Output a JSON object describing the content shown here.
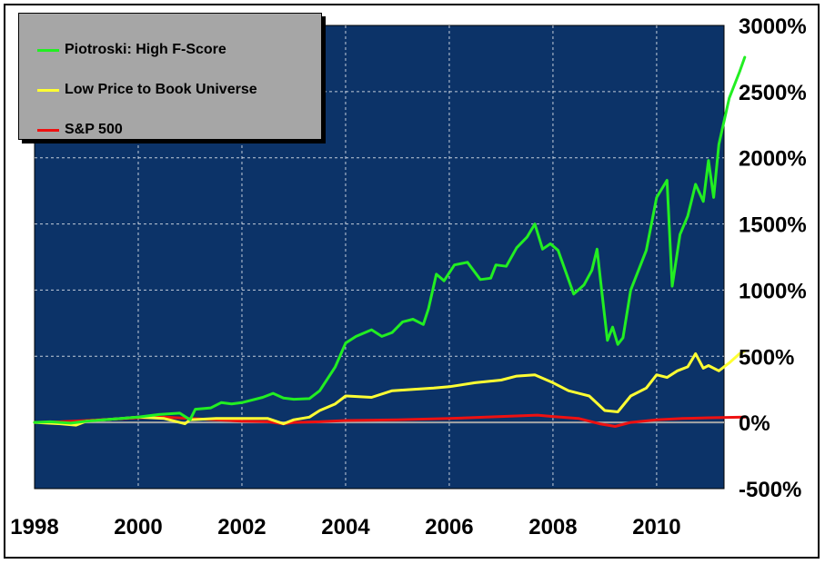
{
  "chart_data": {
    "type": "line",
    "title": "",
    "xlabel": "",
    "ylabel": "",
    "xlim": [
      1998,
      2011.3
    ],
    "ylim": [
      -500,
      3000
    ],
    "x_ticks": [
      "1998",
      "2000",
      "2002",
      "2004",
      "2006",
      "2008",
      "2010"
    ],
    "y_ticks": [
      "3000%",
      "2500%",
      "2000%",
      "1500%",
      "1000%",
      "500%",
      "0%",
      "-500%"
    ],
    "grid": true,
    "legend_position": "top-left",
    "plot_background": "#0c3368",
    "series": [
      {
        "name": "Piotroski: High F-Score",
        "color": "#22ee22",
        "points": [
          [
            1998.0,
            0
          ],
          [
            1998.3,
            5
          ],
          [
            1998.7,
            -5
          ],
          [
            1999.0,
            10
          ],
          [
            1999.5,
            25
          ],
          [
            2000.0,
            40
          ],
          [
            2000.4,
            60
          ],
          [
            2000.8,
            70
          ],
          [
            2001.0,
            20
          ],
          [
            2001.1,
            100
          ],
          [
            2001.4,
            110
          ],
          [
            2001.6,
            150
          ],
          [
            2001.8,
            140
          ],
          [
            2002.0,
            150
          ],
          [
            2002.4,
            190
          ],
          [
            2002.6,
            220
          ],
          [
            2002.8,
            185
          ],
          [
            2003.0,
            175
          ],
          [
            2003.3,
            180
          ],
          [
            2003.5,
            240
          ],
          [
            2003.8,
            420
          ],
          [
            2004.0,
            600
          ],
          [
            2004.2,
            650
          ],
          [
            2004.5,
            700
          ],
          [
            2004.7,
            650
          ],
          [
            2004.9,
            680
          ],
          [
            2005.1,
            760
          ],
          [
            2005.3,
            780
          ],
          [
            2005.5,
            740
          ],
          [
            2005.6,
            860
          ],
          [
            2005.75,
            1120
          ],
          [
            2005.9,
            1070
          ],
          [
            2006.1,
            1190
          ],
          [
            2006.35,
            1210
          ],
          [
            2006.6,
            1080
          ],
          [
            2006.8,
            1090
          ],
          [
            2006.9,
            1190
          ],
          [
            2007.1,
            1180
          ],
          [
            2007.3,
            1320
          ],
          [
            2007.5,
            1400
          ],
          [
            2007.65,
            1500
          ],
          [
            2007.8,
            1310
          ],
          [
            2007.95,
            1350
          ],
          [
            2008.1,
            1300
          ],
          [
            2008.4,
            970
          ],
          [
            2008.6,
            1040
          ],
          [
            2008.75,
            1150
          ],
          [
            2008.85,
            1310
          ],
          [
            2008.95,
            960
          ],
          [
            2009.05,
            620
          ],
          [
            2009.15,
            720
          ],
          [
            2009.25,
            590
          ],
          [
            2009.35,
            640
          ],
          [
            2009.5,
            1000
          ],
          [
            2009.8,
            1300
          ],
          [
            2010.0,
            1700
          ],
          [
            2010.2,
            1830
          ],
          [
            2010.3,
            1030
          ],
          [
            2010.45,
            1420
          ],
          [
            2010.6,
            1560
          ],
          [
            2010.75,
            1800
          ],
          [
            2010.9,
            1670
          ],
          [
            2011.0,
            1980
          ],
          [
            2011.1,
            1700
          ],
          [
            2011.2,
            2100
          ],
          [
            2011.4,
            2450
          ],
          [
            2011.6,
            2650
          ],
          [
            2011.7,
            2760
          ]
        ]
      },
      {
        "name": "Low Price to Book Universe",
        "color": "#ffff33",
        "points": [
          [
            1998.0,
            0
          ],
          [
            1998.5,
            -10
          ],
          [
            1998.8,
            -20
          ],
          [
            1999.0,
            10
          ],
          [
            1999.5,
            25
          ],
          [
            2000.0,
            40
          ],
          [
            2000.5,
            30
          ],
          [
            2000.9,
            -10
          ],
          [
            2001.0,
            20
          ],
          [
            2001.5,
            30
          ],
          [
            2002.0,
            30
          ],
          [
            2002.5,
            30
          ],
          [
            2002.8,
            -10
          ],
          [
            2003.0,
            20
          ],
          [
            2003.3,
            40
          ],
          [
            2003.5,
            90
          ],
          [
            2003.8,
            140
          ],
          [
            2004.0,
            200
          ],
          [
            2004.5,
            190
          ],
          [
            2004.9,
            240
          ],
          [
            2005.3,
            250
          ],
          [
            2005.7,
            260
          ],
          [
            2006.0,
            270
          ],
          [
            2006.5,
            300
          ],
          [
            2007.0,
            320
          ],
          [
            2007.3,
            350
          ],
          [
            2007.65,
            360
          ],
          [
            2008.0,
            300
          ],
          [
            2008.3,
            240
          ],
          [
            2008.7,
            200
          ],
          [
            2009.0,
            90
          ],
          [
            2009.25,
            80
          ],
          [
            2009.5,
            200
          ],
          [
            2009.8,
            260
          ],
          [
            2010.0,
            360
          ],
          [
            2010.2,
            340
          ],
          [
            2010.4,
            390
          ],
          [
            2010.6,
            420
          ],
          [
            2010.75,
            520
          ],
          [
            2010.9,
            410
          ],
          [
            2011.0,
            430
          ],
          [
            2011.2,
            390
          ],
          [
            2011.4,
            450
          ],
          [
            2011.6,
            520
          ],
          [
            2011.7,
            540
          ]
        ]
      },
      {
        "name": "S&P 500",
        "color": "#ee1111",
        "points": [
          [
            1998.0,
            0
          ],
          [
            1998.5,
            5
          ],
          [
            1999.0,
            15
          ],
          [
            1999.5,
            25
          ],
          [
            2000.0,
            35
          ],
          [
            2000.5,
            40
          ],
          [
            2001.0,
            30
          ],
          [
            2001.5,
            20
          ],
          [
            2002.0,
            10
          ],
          [
            2002.5,
            5
          ],
          [
            2002.8,
            -10
          ],
          [
            2003.0,
            0
          ],
          [
            2003.5,
            5
          ],
          [
            2004.0,
            15
          ],
          [
            2005.0,
            20
          ],
          [
            2006.0,
            30
          ],
          [
            2007.0,
            45
          ],
          [
            2007.7,
            55
          ],
          [
            2008.0,
            45
          ],
          [
            2008.5,
            30
          ],
          [
            2008.9,
            -10
          ],
          [
            2009.2,
            -30
          ],
          [
            2009.5,
            0
          ],
          [
            2010.0,
            20
          ],
          [
            2010.5,
            30
          ],
          [
            2011.0,
            35
          ],
          [
            2011.7,
            40
          ]
        ]
      }
    ]
  }
}
